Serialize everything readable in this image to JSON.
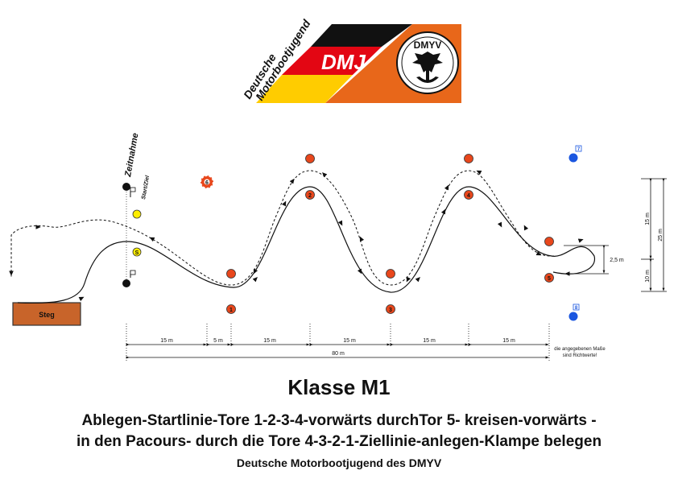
{
  "logo": {
    "org_line1": "Deutsche",
    "org_line2": "Motorbootjugend",
    "short": "DMJ",
    "badge": "DMYV",
    "colors": {
      "black": "#111111",
      "red": "#e30613",
      "gold": "#ffcc00",
      "orange": "#e8671a"
    }
  },
  "labels": {
    "timing": "Zeitnahme",
    "start_finish": "Start/Ziel",
    "dock": "Steg"
  },
  "buoys": [
    {
      "id": "1",
      "label": "1",
      "color": "#e8471c"
    },
    {
      "id": "2",
      "label": "2",
      "color": "#e8471c"
    },
    {
      "id": "3",
      "label": "3",
      "color": "#e8471c"
    },
    {
      "id": "4",
      "label": "4",
      "color": "#e8471c"
    },
    {
      "id": "5",
      "label": "5",
      "color": "#e8471c"
    },
    {
      "id": "6",
      "label": "6",
      "color": "#e8471c"
    },
    {
      "id": "7",
      "label": "7",
      "color": "#1a56e0"
    },
    {
      "id": "8",
      "label": "8",
      "color": "#1a56e0"
    },
    {
      "id": "s",
      "label": "S",
      "color": "#ffee00"
    }
  ],
  "dimensions": {
    "segments": [
      "15 m",
      "5 m",
      "15 m",
      "15 m",
      "15 m",
      "15 m"
    ],
    "total": "80 m",
    "vertical_15": "15 m",
    "vertical_10": "10 m",
    "vertical_25": "25 m",
    "loop": "2,5 m",
    "note_line1": "die angegebenen Maße",
    "note_line2": "sind Richtwerte!"
  },
  "text": {
    "title": "Klasse M1",
    "line1": "Ablegen-Startlinie-Tore 1-2-3-4-vorwärts durchTor 5- kreisen-vorwärts -",
    "line2": "in den Pacours- durch die Tore 4-3-2-1-Ziellinie-anlegen-Klampe belegen",
    "organization": "Deutsche Motorbootjugend des DMYV"
  }
}
